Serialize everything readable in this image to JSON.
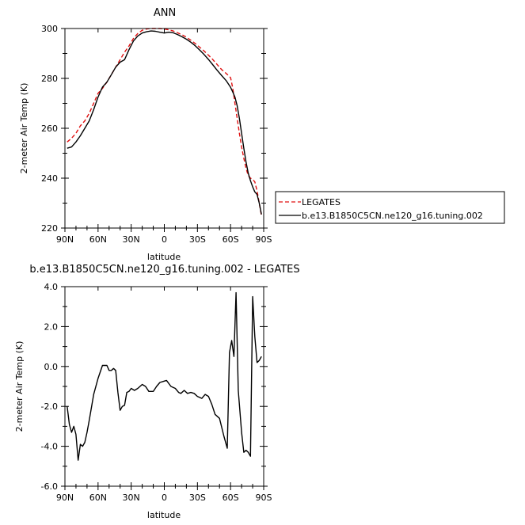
{
  "colors": {
    "legates": "#e01010",
    "model": "#000000",
    "axis": "#000000",
    "legend_border": "#000000"
  },
  "chart_data": [
    {
      "type": "line",
      "title": "ANN",
      "xlabel": "latitude",
      "ylabel": "2-meter Air Temp (K)",
      "x_ticks": [
        {
          "x": 90,
          "label": "90N"
        },
        {
          "x": 60,
          "label": "60N"
        },
        {
          "x": 30,
          "label": "30N"
        },
        {
          "x": 0,
          "label": "0"
        },
        {
          "x": -30,
          "label": "30S"
        },
        {
          "x": -60,
          "label": "60S"
        },
        {
          "x": -90,
          "label": "90S"
        }
      ],
      "y_ticks": [
        {
          "y": 300,
          "label": "300"
        },
        {
          "y": 280,
          "label": "280"
        },
        {
          "y": 260,
          "label": "260"
        },
        {
          "y": 240,
          "label": "240"
        },
        {
          "y": 220,
          "label": "220"
        }
      ],
      "xlim": [
        90,
        -90
      ],
      "ylim": [
        220,
        300
      ],
      "grid": false,
      "legend_position": "right",
      "series": [
        {
          "name": "LEGATES",
          "style": "dashed",
          "x": [
            88,
            84,
            80,
            76,
            72,
            68,
            64,
            60,
            56,
            52,
            48,
            44,
            40,
            36,
            32,
            28,
            24,
            20,
            16,
            12,
            8,
            4,
            0,
            -4,
            -8,
            -12,
            -16,
            -20,
            -24,
            -28,
            -32,
            -36,
            -40,
            -44,
            -48,
            -52,
            -56,
            -60,
            -62,
            -64,
            -66,
            -68,
            -70,
            -72,
            -74,
            -76,
            -78,
            -80,
            -82,
            -84,
            -86,
            -88
          ],
          "y": [
            254.5,
            256,
            258,
            261,
            263,
            266,
            270,
            274,
            276,
            278.5,
            281.5,
            284.5,
            287.5,
            290.5,
            293,
            296,
            298,
            299.3,
            299.8,
            300,
            300,
            300,
            299.8,
            299.5,
            299,
            298.3,
            297.5,
            296.5,
            295.3,
            294,
            292.5,
            291,
            289.3,
            287.5,
            285.5,
            283.5,
            282,
            280.3,
            276,
            270,
            264,
            258,
            252.5,
            248,
            244,
            241,
            240,
            239.5,
            238.5,
            235,
            230,
            225
          ]
        },
        {
          "name": "b.e13.B1850C5CN.ne120_g16.tuning.002",
          "style": "solid",
          "x": [
            88,
            84,
            80,
            76,
            72,
            68,
            64,
            60,
            56,
            52,
            48,
            44,
            40,
            36,
            32,
            28,
            24,
            20,
            16,
            12,
            8,
            4,
            0,
            -4,
            -8,
            -12,
            -16,
            -20,
            -24,
            -28,
            -32,
            -36,
            -40,
            -44,
            -48,
            -52,
            -56,
            -60,
            -62,
            -64,
            -66,
            -68,
            -70,
            -72,
            -74,
            -76,
            -78,
            -80,
            -82,
            -84,
            -86,
            -88
          ],
          "y": [
            252,
            252.5,
            254.5,
            257,
            260,
            263,
            267.5,
            272.5,
            276.5,
            278.5,
            281.5,
            284.5,
            286.5,
            287.5,
            291.5,
            295,
            297,
            298.2,
            298.7,
            299,
            298.9,
            298.5,
            298.2,
            298.5,
            298.3,
            297.6,
            296.7,
            295.7,
            294.5,
            293.1,
            291.4,
            289.6,
            287.6,
            285.4,
            283.2,
            281.1,
            279.1,
            276.4,
            274.5,
            272.5,
            269,
            264,
            258,
            252,
            246.5,
            242,
            239,
            236.5,
            234.5,
            233.5,
            230,
            225.5
          ]
        }
      ]
    },
    {
      "type": "line",
      "title": "b.e13.B1850C5CN.ne120_g16.tuning.002 - LEGATES",
      "xlabel": "latitude",
      "ylabel": "2-meter Air Temp (K)",
      "x_ticks": [
        {
          "x": 90,
          "label": "90N"
        },
        {
          "x": 60,
          "label": "60N"
        },
        {
          "x": 30,
          "label": "30N"
        },
        {
          "x": 0,
          "label": "0"
        },
        {
          "x": -30,
          "label": "30S"
        },
        {
          "x": -60,
          "label": "60S"
        },
        {
          "x": -90,
          "label": "90S"
        }
      ],
      "y_ticks": [
        {
          "y": 4,
          "label": "4.0"
        },
        {
          "y": 2,
          "label": "2.0"
        },
        {
          "y": 0,
          "label": "0.0"
        },
        {
          "y": -2,
          "label": "-2.0"
        },
        {
          "y": -4,
          "label": "-4.0"
        },
        {
          "y": -6,
          "label": "-6.0"
        }
      ],
      "xlim": [
        90,
        -90
      ],
      "ylim": [
        -6,
        4
      ],
      "grid": false,
      "series": [
        {
          "name": "",
          "style": "solid",
          "x": [
            88,
            86,
            84,
            82,
            80,
            78,
            76,
            74,
            72,
            70,
            68,
            64,
            60,
            56,
            52,
            50,
            48,
            46,
            44,
            42,
            40,
            38,
            36,
            34,
            32,
            30,
            27,
            24,
            20,
            17,
            14,
            10,
            7,
            4,
            1,
            -2,
            -6,
            -10,
            -13,
            -15,
            -18,
            -21,
            -24,
            -27,
            -30,
            -34,
            -37,
            -40,
            -43,
            -46,
            -50,
            -54,
            -57,
            -59,
            -61,
            -63,
            -65,
            -67,
            -70,
            -72,
            -74,
            -76,
            -78,
            -80,
            -82,
            -84,
            -86,
            -88
          ],
          "y": [
            -2.0,
            -2.9,
            -3.3,
            -3.0,
            -3.4,
            -4.7,
            -3.9,
            -4.0,
            -3.8,
            -3.3,
            -2.7,
            -1.4,
            -0.6,
            0.05,
            0.05,
            -0.2,
            -0.2,
            -0.1,
            -0.2,
            -1.3,
            -2.2,
            -2.0,
            -1.95,
            -1.3,
            -1.25,
            -1.1,
            -1.2,
            -1.1,
            -0.9,
            -1.0,
            -1.25,
            -1.25,
            -1.0,
            -0.8,
            -0.75,
            -0.7,
            -1.0,
            -1.1,
            -1.3,
            -1.35,
            -1.2,
            -1.35,
            -1.3,
            -1.35,
            -1.5,
            -1.6,
            -1.4,
            -1.5,
            -1.9,
            -2.4,
            -2.6,
            -3.5,
            -4.1,
            0.7,
            1.3,
            0.5,
            3.7,
            -1.2,
            -3.3,
            -4.3,
            -4.2,
            -4.3,
            -4.5,
            3.5,
            1.5,
            0.2,
            0.3,
            0.5
          ]
        }
      ]
    }
  ]
}
